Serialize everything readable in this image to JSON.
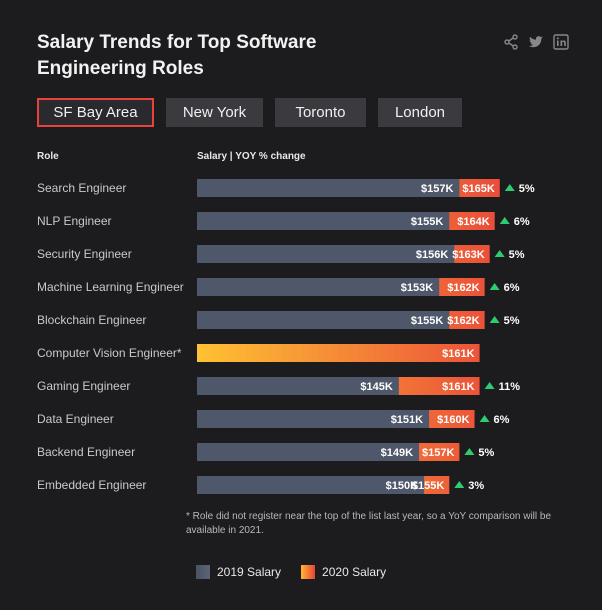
{
  "title": "Salary Trends for Top Software Engineering Roles",
  "social": [
    "share-icon",
    "twitter-icon",
    "linkedin-icon"
  ],
  "tabs": [
    "SF Bay Area",
    "New York",
    "Toronto",
    "London"
  ],
  "active_tab": "SF Bay Area",
  "headers": {
    "role": "Role",
    "salary": "Salary | YOY % change"
  },
  "footnote": "* Role did not register near the top of the list last year, so a YoY comparison will be available in 2021.",
  "legend": {
    "s2019": "2019 Salary",
    "s2020": "2020 Salary"
  },
  "colors": {
    "s2019": "#4f586b",
    "grad_start": "#ffc233",
    "grad_end": "#e8423a",
    "up": "#2ecc71",
    "accent": "#e8423a"
  },
  "chart_data": {
    "type": "bar",
    "orientation": "horizontal",
    "value_unit": "$K",
    "categories": [
      "Search Engineer",
      "NLP Engineer",
      "Security Engineer",
      "Machine Learning Engineer",
      "Blockchain Engineer",
      "Computer Vision Engineer*",
      "Gaming Engineer",
      "Data Engineer",
      "Backend Engineer",
      "Embedded Engineer"
    ],
    "series": [
      {
        "name": "2019 Salary",
        "values": [
          157,
          155,
          156,
          153,
          155,
          null,
          145,
          151,
          149,
          150
        ],
        "labels": [
          "$157K",
          "$155K",
          "$156K",
          "$153K",
          "$155K",
          "",
          "$145K",
          "$151K",
          "$149K",
          "$150K"
        ]
      },
      {
        "name": "2020 Salary",
        "values": [
          165,
          164,
          163,
          162,
          162,
          161,
          161,
          160,
          157,
          155
        ],
        "labels": [
          "$165K",
          "$164K",
          "$163K",
          "$162K",
          "$162K",
          "$161K",
          "$161K",
          "$160K",
          "$157K",
          "$155K"
        ]
      }
    ],
    "yoy_change": [
      "5%",
      "6%",
      "5%",
      "6%",
      "5%",
      "",
      "11%",
      "6%",
      "5%",
      "3%"
    ],
    "xlim": [
      105,
      170
    ]
  }
}
